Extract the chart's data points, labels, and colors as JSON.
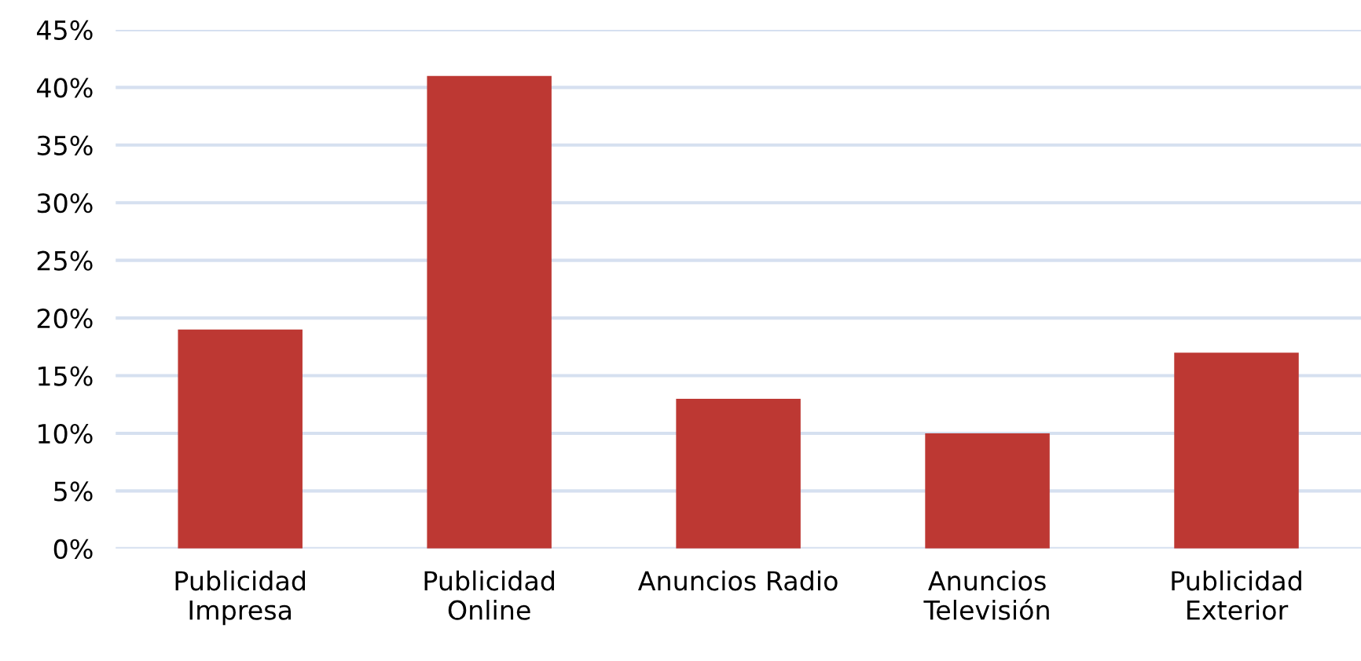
{
  "chart_data": {
    "type": "bar",
    "categories": [
      "Publicidad\nImpresa",
      "Publicidad\nOnline",
      "Anuncios Radio",
      "Anuncios\nTelevisión",
      "Publicidad\nExterior"
    ],
    "values": [
      19,
      41,
      13,
      10,
      17
    ],
    "color": "#bd3833",
    "ylim": [
      0,
      45
    ],
    "yticks": [
      {
        "value": 0,
        "label": "0%"
      },
      {
        "value": 5,
        "label": "5%"
      },
      {
        "value": 10,
        "label": "10%"
      },
      {
        "value": 15,
        "label": "15%"
      },
      {
        "value": 20,
        "label": "20%"
      },
      {
        "value": 25,
        "label": "25%"
      },
      {
        "value": 30,
        "label": "30%"
      },
      {
        "value": 35,
        "label": "35%"
      },
      {
        "value": 40,
        "label": "40%"
      },
      {
        "value": 45,
        "label": "45%"
      }
    ],
    "grid": "y"
  }
}
